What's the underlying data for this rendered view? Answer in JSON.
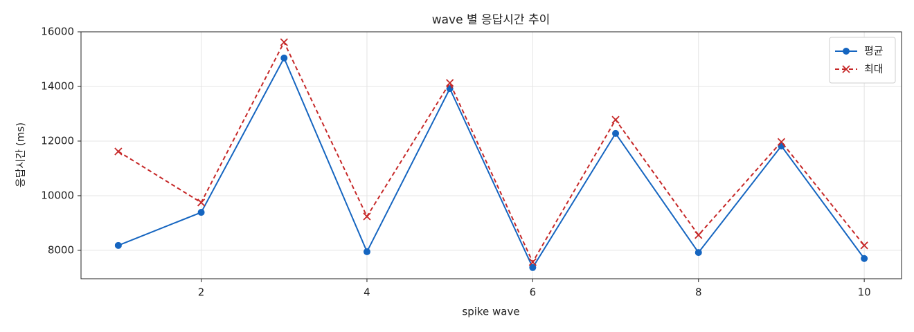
{
  "chart_data": {
    "type": "line",
    "title": "wave 별 응답시간 추이",
    "x_label": "spike wave",
    "y_label": "응답시간 (ms)",
    "x": [
      1,
      2,
      3,
      4,
      5,
      6,
      7,
      8,
      9,
      10
    ],
    "series": [
      {
        "name": "평균",
        "color": "#1565c0",
        "marker": "circle",
        "dash": false,
        "values": [
          8180,
          9390,
          15040,
          7950,
          13920,
          7370,
          12280,
          7920,
          11820,
          7700
        ]
      },
      {
        "name": "최대",
        "color": "#c62828",
        "marker": "x",
        "dash": true,
        "values": [
          11620,
          9750,
          15620,
          9240,
          14130,
          7570,
          12780,
          8560,
          11970,
          8180
        ]
      }
    ],
    "xlim": [
      0.55,
      10.45
    ],
    "xticks": [
      2,
      4,
      6,
      8,
      10
    ],
    "ylim": [
      6960,
      16000
    ],
    "yticks": [
      8000,
      10000,
      12000,
      14000,
      16000
    ],
    "grid": true,
    "legend": "upper right"
  }
}
